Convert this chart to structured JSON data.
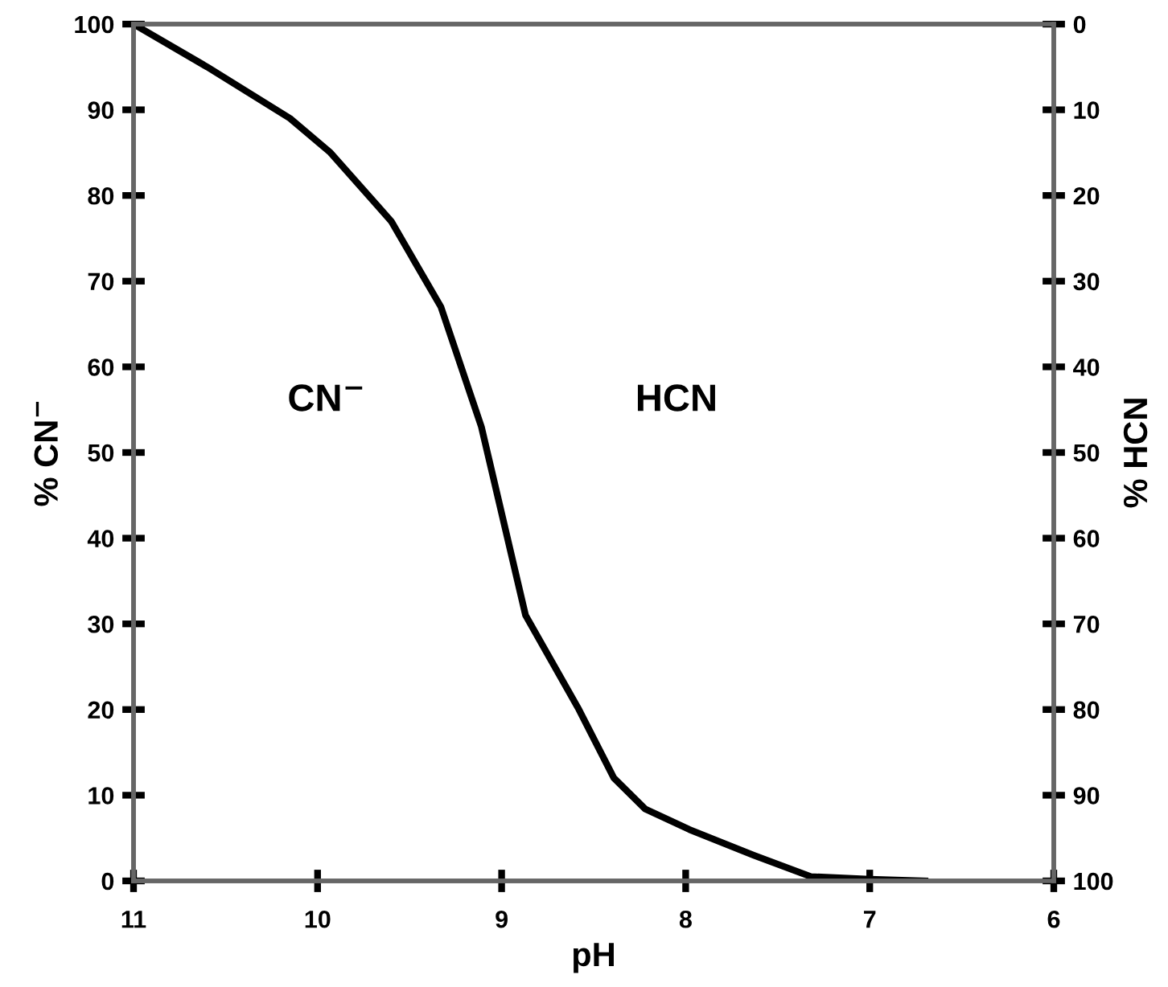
{
  "chart_data": {
    "type": "line",
    "xlabel": "pH",
    "ylabel": "% CN$^{−}$",
    "y2label": "% HCN",
    "x": [
      11,
      10.6,
      10.15,
      9.93,
      9.6,
      9.33,
      9.11,
      8.87,
      8.58,
      8.39,
      8.22,
      7.98,
      7.63,
      7.32,
      7.0,
      6.7
    ],
    "series": [
      {
        "color": "#000000",
        "values": [
          100,
          95,
          89,
          85,
          77,
          67,
          53,
          31,
          20,
          12,
          8.4,
          6,
          3,
          0.5,
          0.2,
          0
        ]
      }
    ],
    "xlim": [
      11,
      6
    ],
    "xticks": [
      11,
      10,
      9,
      8,
      7,
      6
    ],
    "ylim": [
      0,
      100
    ],
    "yticks": [
      0,
      10,
      20,
      30,
      40,
      50,
      60,
      70,
      80,
      90,
      100
    ],
    "y2lim": [
      100,
      0
    ],
    "y2ticks": [
      0,
      10,
      20,
      30,
      40,
      50,
      60,
      70,
      80,
      90,
      100
    ],
    "annotations": [
      "CN$^{−}$",
      "HCN"
    ],
    "grid": false,
    "marker": "none",
    "line_style": "solid"
  }
}
